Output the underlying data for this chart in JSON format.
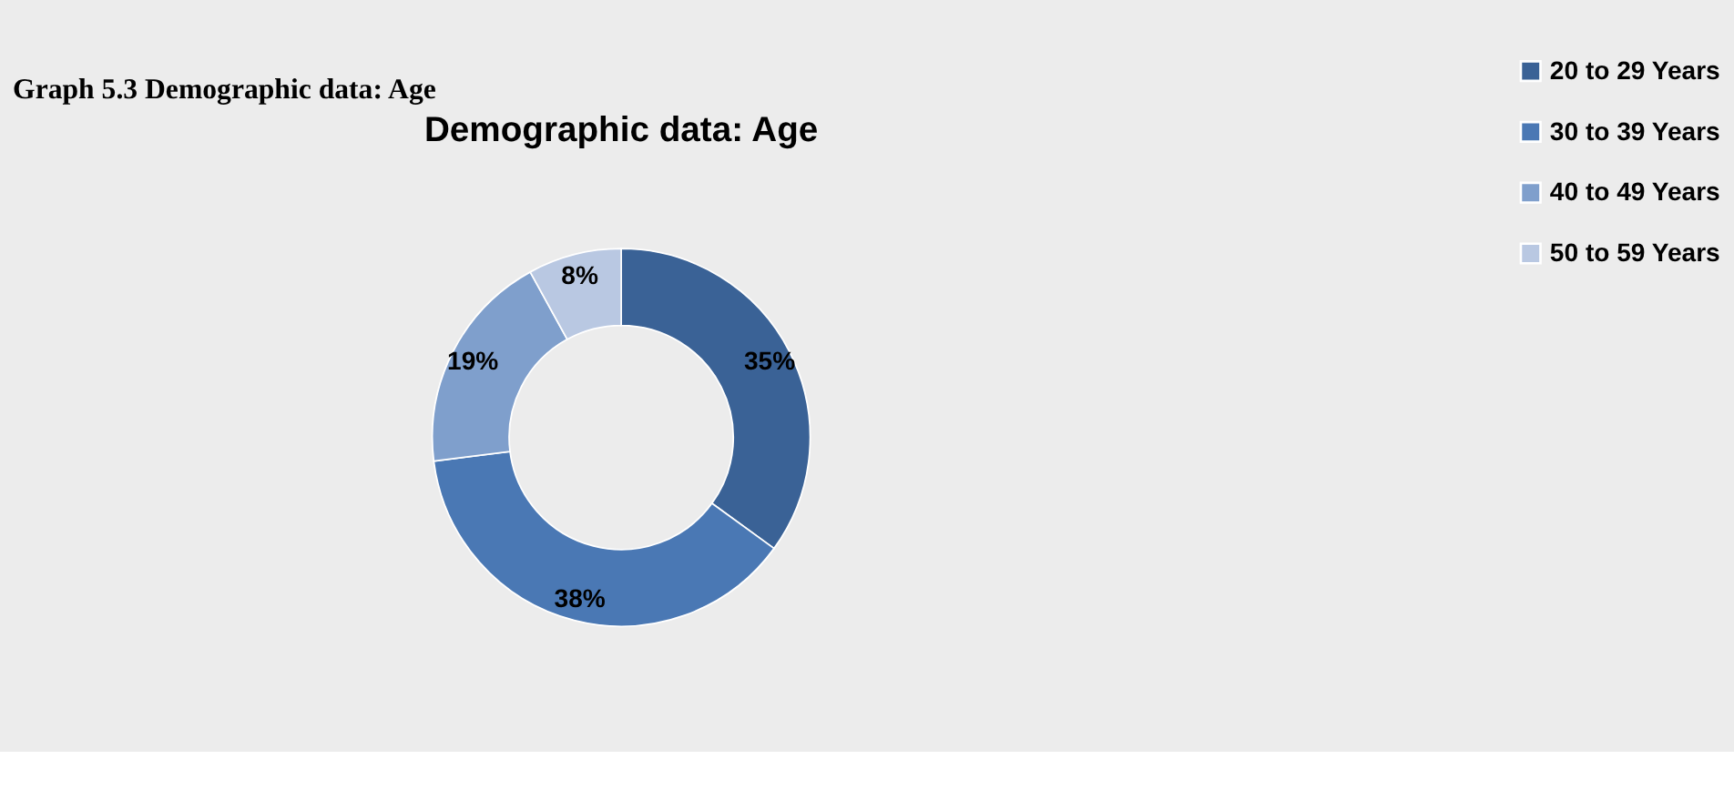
{
  "chart_data": {
    "type": "donut",
    "title": "Demographic data: Age",
    "annotations": [
      "Graph 5.3 Demographic data: Age"
    ],
    "categories": [
      "20 to 29 Years",
      "30 to 39 Years",
      "40 to 49 Years",
      "50 to 59 Years"
    ],
    "values": [
      35,
      38,
      19,
      8
    ],
    "colors": [
      "#3a6296",
      "#4a78b4",
      "#7f9fcc",
      "#b9c8e2"
    ],
    "value_labels": [
      "35%",
      "38%",
      "19%",
      "8%"
    ],
    "legend": "right"
  }
}
